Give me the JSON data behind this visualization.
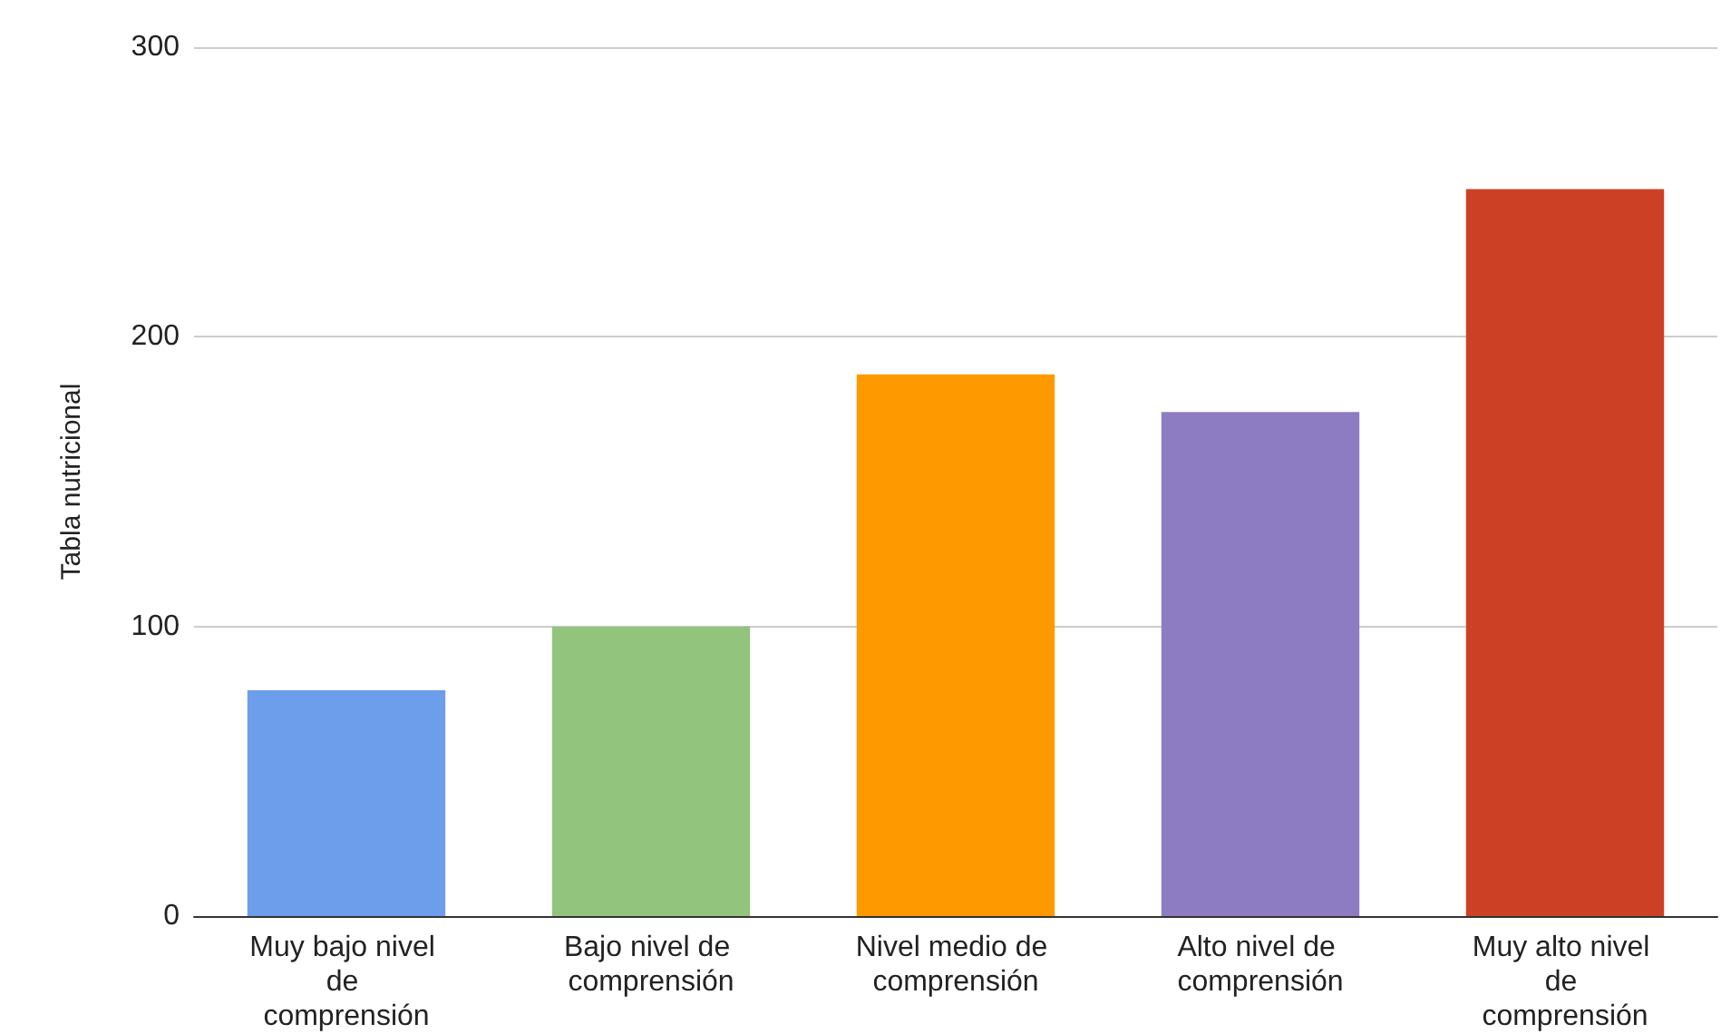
{
  "chart_data": {
    "type": "bar",
    "ylabel": "Tabla nutricional",
    "categories": [
      "Muy bajo nivel de comprensión",
      "Bajo nivel de comprensión",
      "Nivel medio de comprensión",
      "Alto nivel de comprensión",
      "Muy alto nivel de comprensión"
    ],
    "values": [
      78,
      100,
      187,
      174,
      251
    ],
    "colors": [
      "#6d9eeb",
      "#93c47d",
      "#ff9900",
      "#8e7cc3",
      "#cc4125"
    ],
    "ylim": [
      0,
      300
    ],
    "yticks": [
      0,
      100,
      200,
      300
    ],
    "grid": "y"
  }
}
